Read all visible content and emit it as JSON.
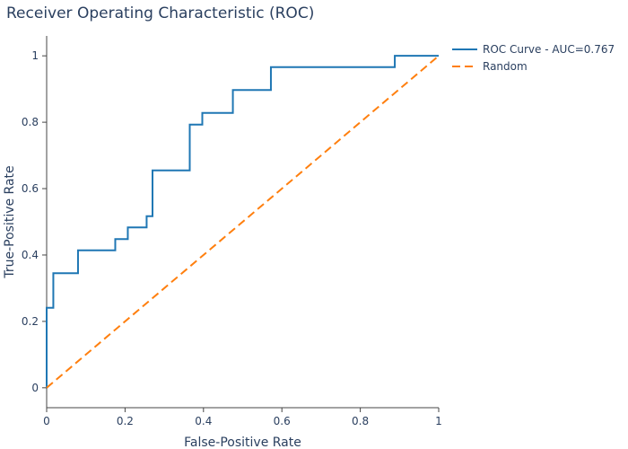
{
  "chart_data": {
    "type": "line",
    "title": "Receiver Operating Characteristic (ROC)",
    "xlabel": "False-Positive Rate",
    "ylabel": "True-Positive Rate",
    "xlim": [
      0,
      1
    ],
    "ylim": [
      -0.06,
      1.06
    ],
    "x_ticks": [
      0,
      0.2,
      0.4,
      0.6,
      0.8,
      1
    ],
    "x_tick_labels": [
      "0",
      "0.2",
      "0.4",
      "0.6",
      "0.8",
      "1"
    ],
    "y_ticks": [
      0,
      0.2,
      0.4,
      0.6,
      0.8,
      1
    ],
    "y_tick_labels": [
      "0",
      "0.2",
      "0.4",
      "0.6",
      "0.8",
      "1"
    ],
    "grid": false,
    "legend_position": "top-right outside",
    "series": [
      {
        "name": "ROC Curve - AUC=0.767",
        "color": "#1f77b4",
        "dash": "solid",
        "shape": "step",
        "x": [
          0,
          0,
          0.017,
          0.017,
          0.08,
          0.08,
          0.175,
          0.175,
          0.207,
          0.207,
          0.255,
          0.255,
          0.27,
          0.27,
          0.365,
          0.365,
          0.397,
          0.397,
          0.475,
          0.475,
          0.572,
          0.572,
          0.888,
          0.888,
          1.0
        ],
        "y": [
          0,
          0.241,
          0.241,
          0.345,
          0.345,
          0.414,
          0.414,
          0.448,
          0.448,
          0.483,
          0.483,
          0.517,
          0.517,
          0.655,
          0.655,
          0.793,
          0.793,
          0.828,
          0.828,
          0.897,
          0.897,
          0.966,
          0.966,
          1.0,
          1.0
        ]
      },
      {
        "name": "Random",
        "color": "#ff7f0e",
        "dash": "dash",
        "shape": "line",
        "x": [
          0,
          1
        ],
        "y": [
          0,
          1
        ]
      }
    ]
  }
}
